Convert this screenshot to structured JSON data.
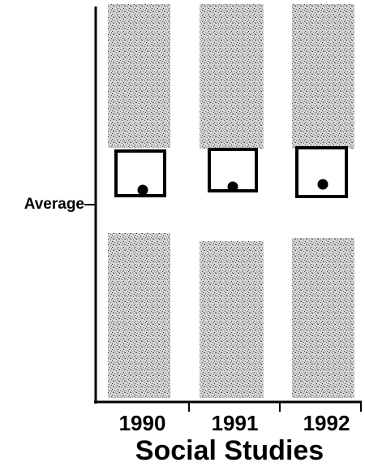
{
  "chart_data": {
    "type": "dot",
    "title": "Social Studies",
    "y_annotation": "Average",
    "categories": [
      "1990",
      "1991",
      "1992"
    ]
  }
}
